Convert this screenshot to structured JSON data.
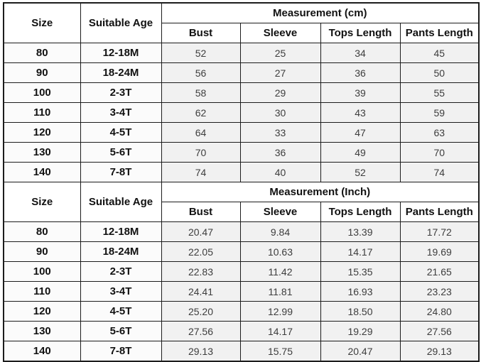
{
  "chart_data": [
    {
      "type": "table",
      "title": "Measurement (cm)",
      "header_columns": [
        "Size",
        "Suitable Age"
      ],
      "sub_columns": [
        "Bust",
        "Sleeve",
        "Tops Length",
        "Pants Length"
      ],
      "rows": [
        [
          "80",
          "12-18M",
          "52",
          "25",
          "34",
          "45"
        ],
        [
          "90",
          "18-24M",
          "56",
          "27",
          "36",
          "50"
        ],
        [
          "100",
          "2-3T",
          "58",
          "29",
          "39",
          "55"
        ],
        [
          "110",
          "3-4T",
          "62",
          "30",
          "43",
          "59"
        ],
        [
          "120",
          "4-5T",
          "64",
          "33",
          "47",
          "63"
        ],
        [
          "130",
          "5-6T",
          "70",
          "36",
          "49",
          "70"
        ],
        [
          "140",
          "7-8T",
          "74",
          "40",
          "52",
          "74"
        ]
      ]
    },
    {
      "type": "table",
      "title": "Measurement (Inch)",
      "header_columns": [
        "Size",
        "Suitable Age"
      ],
      "sub_columns": [
        "Bust",
        "Sleeve",
        "Tops Length",
        "Pants Length"
      ],
      "rows": [
        [
          "80",
          "12-18M",
          "20.47",
          "9.84",
          "13.39",
          "17.72"
        ],
        [
          "90",
          "18-24M",
          "22.05",
          "10.63",
          "14.17",
          "19.69"
        ],
        [
          "100",
          "2-3T",
          "22.83",
          "11.42",
          "15.35",
          "21.65"
        ],
        [
          "110",
          "3-4T",
          "24.41",
          "11.81",
          "16.93",
          "23.23"
        ],
        [
          "120",
          "4-5T",
          "25.20",
          "12.99",
          "18.50",
          "24.80"
        ],
        [
          "130",
          "5-6T",
          "27.56",
          "14.17",
          "19.29",
          "27.56"
        ],
        [
          "140",
          "7-8T",
          "29.13",
          "15.75",
          "20.47",
          "29.13"
        ]
      ]
    }
  ],
  "colors": {
    "border": "#1c1c1c",
    "header_bg": "#ffffff",
    "value_cell_bg": "#f1f1f1",
    "header_text": "#111111",
    "value_text": "#3d3d3d"
  }
}
